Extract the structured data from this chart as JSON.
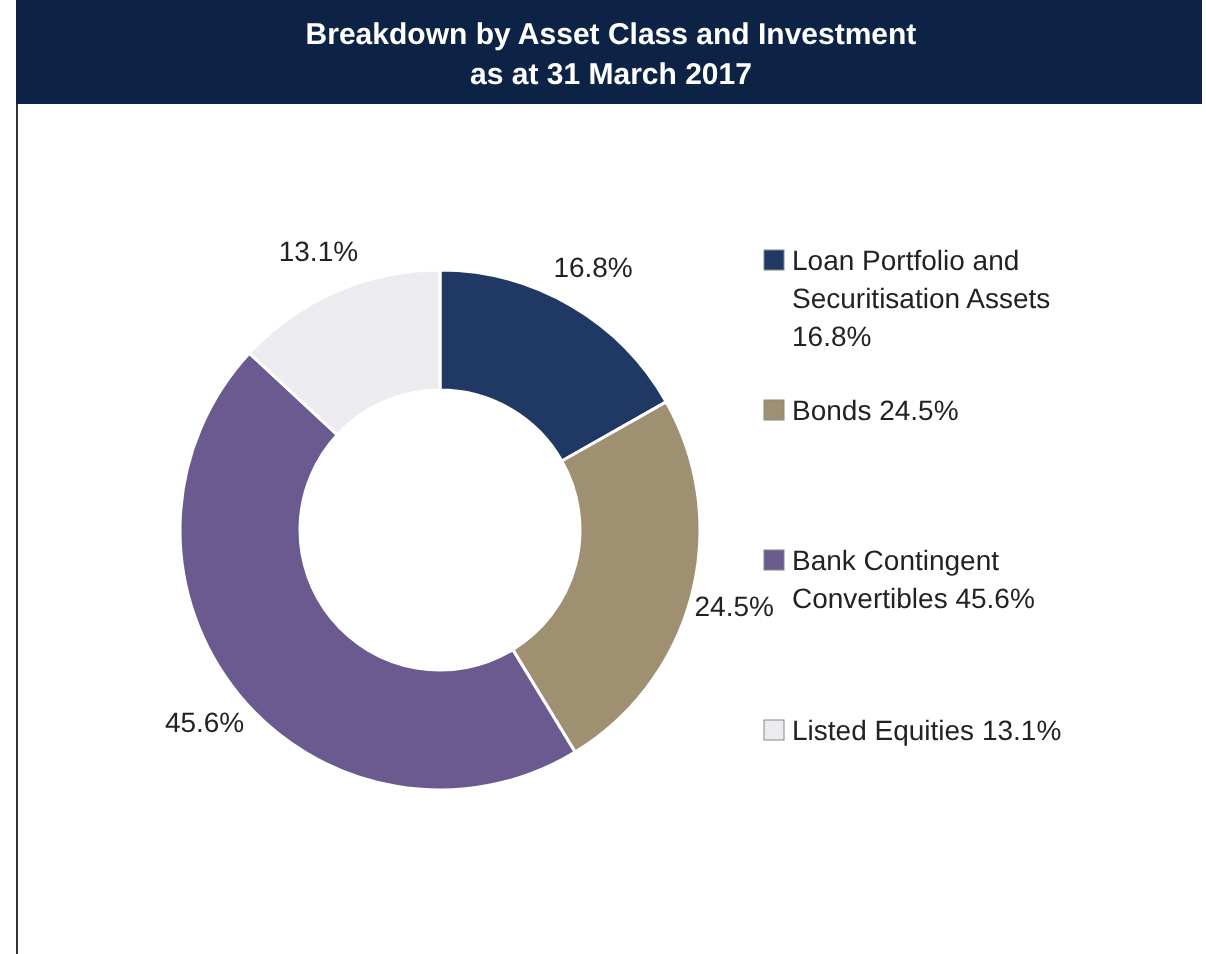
{
  "chart_data": {
    "type": "donut",
    "title": "Breakdown by Asset Class and Investment",
    "subtitle": "as at 31 March 2017",
    "categories": [
      "Loan Portfolio and Securitisation Assets 16.8%",
      "Bonds 24.5%",
      "Bank Contingent Convertibles 45.6%",
      "Listed Equities 13.1%"
    ],
    "values": [
      16.8,
      24.5,
      45.6,
      13.1
    ],
    "colors": [
      "#1f3864",
      "#9e9070",
      "#6b5a8f",
      "#ececf0"
    ],
    "value_labels": [
      "16.8%",
      "24.5%",
      "45.6%",
      "13.1%"
    ],
    "legend": "right"
  }
}
